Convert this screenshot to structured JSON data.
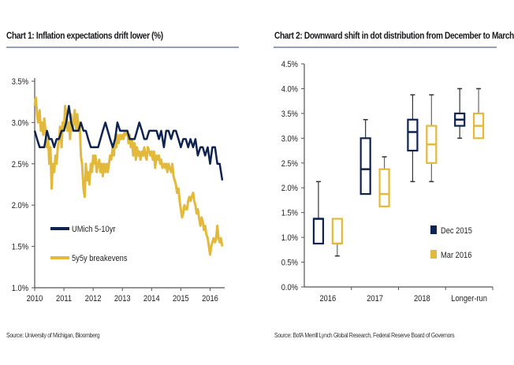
{
  "chart_data": [
    {
      "type": "line",
      "title": "Chart 1: Inflation expectations drift lower (%)",
      "source": "Source: University of Michigan, Bloomberg",
      "xlabel": "",
      "ylabel": "",
      "xlim": [
        2010,
        2016.5
      ],
      "ylim": [
        1.0,
        3.5
      ],
      "x_ticks": [
        "2010",
        "2011",
        "2012",
        "2013",
        "2014",
        "2015",
        "2016"
      ],
      "y_ticks": [
        "1.0%",
        "1.5%",
        "2.0%",
        "2.5%",
        "3.0%",
        "3.5%"
      ],
      "grid": false,
      "legend": "middle-left",
      "series": [
        {
          "name": "UMich 5-10yr",
          "color": "#0f2350",
          "points": [
            [
              2010.0,
              2.9
            ],
            [
              2010.08,
              2.8
            ],
            [
              2010.17,
              2.7
            ],
            [
              2010.25,
              2.7
            ],
            [
              2010.33,
              2.7
            ],
            [
              2010.42,
              2.9
            ],
            [
              2010.5,
              2.8
            ],
            [
              2010.58,
              2.8
            ],
            [
              2010.67,
              2.7
            ],
            [
              2010.75,
              2.8
            ],
            [
              2010.83,
              2.8
            ],
            [
              2010.92,
              2.9
            ],
            [
              2011.0,
              2.9
            ],
            [
              2011.08,
              3.0
            ],
            [
              2011.17,
              3.2
            ],
            [
              2011.25,
              3.0
            ],
            [
              2011.33,
              2.9
            ],
            [
              2011.42,
              2.9
            ],
            [
              2011.5,
              2.9
            ],
            [
              2011.58,
              3.0
            ],
            [
              2011.67,
              2.9
            ],
            [
              2011.75,
              2.9
            ],
            [
              2011.83,
              2.8
            ],
            [
              2011.92,
              2.7
            ],
            [
              2012.0,
              2.7
            ],
            [
              2012.08,
              2.7
            ],
            [
              2012.17,
              2.7
            ],
            [
              2012.25,
              2.8
            ],
            [
              2012.33,
              2.9
            ],
            [
              2012.42,
              3.0
            ],
            [
              2012.5,
              2.9
            ],
            [
              2012.58,
              2.8
            ],
            [
              2012.67,
              2.7
            ],
            [
              2012.75,
              2.8
            ],
            [
              2012.83,
              3.0
            ],
            [
              2012.92,
              2.9
            ],
            [
              2013.0,
              2.9
            ],
            [
              2013.08,
              2.9
            ],
            [
              2013.17,
              2.9
            ],
            [
              2013.25,
              2.8
            ],
            [
              2013.33,
              2.8
            ],
            [
              2013.42,
              2.8
            ],
            [
              2013.5,
              2.9
            ],
            [
              2013.58,
              3.0
            ],
            [
              2013.67,
              2.9
            ],
            [
              2013.75,
              2.8
            ],
            [
              2013.83,
              2.8
            ],
            [
              2013.92,
              2.9
            ],
            [
              2014.0,
              2.9
            ],
            [
              2014.08,
              2.9
            ],
            [
              2014.17,
              2.9
            ],
            [
              2014.25,
              2.8
            ],
            [
              2014.33,
              2.9
            ],
            [
              2014.42,
              2.7
            ],
            [
              2014.5,
              2.9
            ],
            [
              2014.58,
              2.9
            ],
            [
              2014.67,
              2.8
            ],
            [
              2014.75,
              2.9
            ],
            [
              2014.83,
              2.9
            ],
            [
              2014.92,
              2.8
            ],
            [
              2015.0,
              2.7
            ],
            [
              2015.08,
              2.8
            ],
            [
              2015.17,
              2.8
            ],
            [
              2015.25,
              2.7
            ],
            [
              2015.33,
              2.8
            ],
            [
              2015.42,
              2.7
            ],
            [
              2015.5,
              2.8
            ],
            [
              2015.58,
              2.6
            ],
            [
              2015.67,
              2.7
            ],
            [
              2015.75,
              2.7
            ],
            [
              2015.83,
              2.6
            ],
            [
              2015.92,
              2.7
            ],
            [
              2016.0,
              2.5
            ],
            [
              2016.08,
              2.7
            ],
            [
              2016.17,
              2.7
            ],
            [
              2016.25,
              2.5
            ],
            [
              2016.33,
              2.5
            ],
            [
              2016.42,
              2.3
            ]
          ]
        },
        {
          "name": "5y5y breakevens",
          "color": "#e2b93b",
          "points": [
            [
              2010.0,
              3.2
            ],
            [
              2010.04,
              3.3
            ],
            [
              2010.08,
              3.1
            ],
            [
              2010.12,
              3.0
            ],
            [
              2010.17,
              3.15
            ],
            [
              2010.21,
              2.9
            ],
            [
              2010.25,
              3.0
            ],
            [
              2010.29,
              2.85
            ],
            [
              2010.33,
              3.05
            ],
            [
              2010.37,
              2.9
            ],
            [
              2010.42,
              2.7
            ],
            [
              2010.46,
              2.8
            ],
            [
              2010.5,
              2.5
            ],
            [
              2010.54,
              2.7
            ],
            [
              2010.58,
              2.2
            ],
            [
              2010.62,
              2.5
            ],
            [
              2010.67,
              2.4
            ],
            [
              2010.71,
              2.6
            ],
            [
              2010.75,
              2.5
            ],
            [
              2010.79,
              2.7
            ],
            [
              2010.83,
              2.8
            ],
            [
              2010.87,
              2.95
            ],
            [
              2010.92,
              2.7
            ],
            [
              2010.96,
              3.0
            ],
            [
              2011.0,
              2.9
            ],
            [
              2011.04,
              3.2
            ],
            [
              2011.08,
              3.1
            ],
            [
              2011.12,
              2.9
            ],
            [
              2011.17,
              3.0
            ],
            [
              2011.21,
              2.8
            ],
            [
              2011.25,
              3.1
            ],
            [
              2011.29,
              2.9
            ],
            [
              2011.33,
              3.0
            ],
            [
              2011.37,
              3.15
            ],
            [
              2011.42,
              2.9
            ],
            [
              2011.46,
              3.1
            ],
            [
              2011.5,
              2.9
            ],
            [
              2011.54,
              3.0
            ],
            [
              2011.58,
              2.6
            ],
            [
              2011.62,
              2.5
            ],
            [
              2011.67,
              2.2
            ],
            [
              2011.71,
              2.1
            ],
            [
              2011.75,
              2.5
            ],
            [
              2011.79,
              2.3
            ],
            [
              2011.83,
              2.4
            ],
            [
              2011.87,
              2.25
            ],
            [
              2011.92,
              2.5
            ],
            [
              2011.96,
              2.4
            ],
            [
              2012.0,
              2.6
            ],
            [
              2012.04,
              2.5
            ],
            [
              2012.08,
              2.6
            ],
            [
              2012.12,
              2.4
            ],
            [
              2012.17,
              2.5
            ],
            [
              2012.21,
              2.55
            ],
            [
              2012.25,
              2.4
            ],
            [
              2012.29,
              2.5
            ],
            [
              2012.33,
              2.35
            ],
            [
              2012.37,
              2.5
            ],
            [
              2012.42,
              2.4
            ],
            [
              2012.46,
              2.5
            ],
            [
              2012.5,
              2.4
            ],
            [
              2012.54,
              2.5
            ],
            [
              2012.58,
              2.6
            ],
            [
              2012.62,
              2.55
            ],
            [
              2012.67,
              2.7
            ],
            [
              2012.71,
              2.6
            ],
            [
              2012.75,
              2.8
            ],
            [
              2012.79,
              2.7
            ],
            [
              2012.83,
              2.85
            ],
            [
              2012.87,
              2.75
            ],
            [
              2012.92,
              2.85
            ],
            [
              2012.96,
              2.8
            ],
            [
              2013.0,
              2.85
            ],
            [
              2013.04,
              2.8
            ],
            [
              2013.08,
              2.9
            ],
            [
              2013.12,
              2.85
            ],
            [
              2013.17,
              2.9
            ],
            [
              2013.21,
              2.75
            ],
            [
              2013.25,
              2.85
            ],
            [
              2013.29,
              2.7
            ],
            [
              2013.33,
              2.8
            ],
            [
              2013.37,
              2.6
            ],
            [
              2013.42,
              2.75
            ],
            [
              2013.46,
              2.55
            ],
            [
              2013.5,
              2.7
            ],
            [
              2013.54,
              2.6
            ],
            [
              2013.58,
              2.65
            ],
            [
              2013.62,
              2.55
            ],
            [
              2013.67,
              2.65
            ],
            [
              2013.71,
              2.6
            ],
            [
              2013.75,
              2.7
            ],
            [
              2013.79,
              2.6
            ],
            [
              2013.83,
              2.55
            ],
            [
              2013.87,
              2.7
            ],
            [
              2013.92,
              2.65
            ],
            [
              2013.96,
              2.6
            ],
            [
              2014.0,
              2.65
            ],
            [
              2014.04,
              2.55
            ],
            [
              2014.08,
              2.65
            ],
            [
              2014.12,
              2.45
            ],
            [
              2014.17,
              2.6
            ],
            [
              2014.21,
              2.55
            ],
            [
              2014.25,
              2.6
            ],
            [
              2014.29,
              2.5
            ],
            [
              2014.33,
              2.55
            ],
            [
              2014.37,
              2.45
            ],
            [
              2014.42,
              2.5
            ],
            [
              2014.46,
              2.45
            ],
            [
              2014.5,
              2.5
            ],
            [
              2014.54,
              2.4
            ],
            [
              2014.58,
              2.5
            ],
            [
              2014.62,
              2.45
            ],
            [
              2014.67,
              2.4
            ],
            [
              2014.71,
              2.5
            ],
            [
              2014.75,
              2.35
            ],
            [
              2014.79,
              2.3
            ],
            [
              2014.83,
              2.25
            ],
            [
              2014.87,
              2.15
            ],
            [
              2014.92,
              2.2
            ],
            [
              2014.96,
              2.05
            ],
            [
              2015.0,
              1.95
            ],
            [
              2015.04,
              1.85
            ],
            [
              2015.08,
              1.9
            ],
            [
              2015.12,
              2.0
            ],
            [
              2015.17,
              1.95
            ],
            [
              2015.21,
              1.95
            ],
            [
              2015.25,
              2.05
            ],
            [
              2015.29,
              2.1
            ],
            [
              2015.33,
              2.05
            ],
            [
              2015.37,
              2.1
            ],
            [
              2015.42,
              2.15
            ],
            [
              2015.46,
              2.05
            ],
            [
              2015.5,
              2.0
            ],
            [
              2015.54,
              1.9
            ],
            [
              2015.58,
              1.95
            ],
            [
              2015.62,
              1.85
            ],
            [
              2015.67,
              1.75
            ],
            [
              2015.71,
              1.85
            ],
            [
              2015.75,
              1.8
            ],
            [
              2015.79,
              1.7
            ],
            [
              2015.83,
              1.75
            ],
            [
              2015.87,
              1.65
            ],
            [
              2015.92,
              1.6
            ],
            [
              2015.96,
              1.5
            ],
            [
              2016.0,
              1.4
            ],
            [
              2016.04,
              1.5
            ],
            [
              2016.08,
              1.55
            ],
            [
              2016.12,
              1.6
            ],
            [
              2016.17,
              1.55
            ],
            [
              2016.21,
              1.6
            ],
            [
              2016.25,
              1.75
            ],
            [
              2016.29,
              1.6
            ],
            [
              2016.33,
              1.55
            ],
            [
              2016.37,
              1.6
            ],
            [
              2016.42,
              1.5
            ]
          ]
        }
      ]
    },
    {
      "type": "boxplot",
      "title": "Chart 2: Downward shift in dot distribution from December to March",
      "source": "Source: BofA Merrill Lynch Global Research, Federal Reserve Board of Governors",
      "xlabel": "",
      "ylabel": "",
      "ylim": [
        0.0,
        4.5
      ],
      "y_ticks": [
        "0.0%",
        "0.5%",
        "1.0%",
        "1.5%",
        "2.0%",
        "2.5%",
        "3.0%",
        "3.5%",
        "4.0%",
        "4.5%"
      ],
      "categories": [
        "2016",
        "2017",
        "2018",
        "Longer-run"
      ],
      "grid": false,
      "legend": "right",
      "series": [
        {
          "name": "Dec 2015",
          "color": "#0f2350",
          "boxes": [
            {
              "min": 0.875,
              "q1": 0.875,
              "median": 1.375,
              "q3": 1.375,
              "max": 2.125
            },
            {
              "min": 1.875,
              "q1": 1.875,
              "median": 2.375,
              "q3": 3.0,
              "max": 3.375
            },
            {
              "min": 2.125,
              "q1": 2.75,
              "median": 3.125,
              "q3": 3.375,
              "max": 3.875
            },
            {
              "min": 3.0,
              "q1": 3.25,
              "median": 3.375,
              "q3": 3.5,
              "max": 4.0
            }
          ]
        },
        {
          "name": "Mar 2016",
          "color": "#e2b93b",
          "boxes": [
            {
              "min": 0.625,
              "q1": 0.875,
              "median": 0.875,
              "q3": 1.375,
              "max": 1.375
            },
            {
              "min": 1.625,
              "q1": 1.625,
              "median": 1.875,
              "q3": 2.375,
              "max": 2.625
            },
            {
              "min": 2.125,
              "q1": 2.5,
              "median": 2.875,
              "q3": 3.25,
              "max": 3.875
            },
            {
              "min": 3.0,
              "q1": 3.0,
              "median": 3.25,
              "q3": 3.5,
              "max": 4.0
            }
          ]
        }
      ]
    }
  ]
}
